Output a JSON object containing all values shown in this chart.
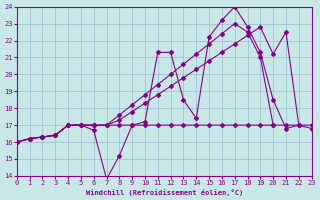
{
  "xlabel": "Windchill (Refroidissement éolien,°C)",
  "xlim": [
    0,
    23
  ],
  "ylim": [
    14,
    24
  ],
  "xticks": [
    0,
    1,
    2,
    3,
    4,
    5,
    6,
    7,
    8,
    9,
    10,
    11,
    12,
    13,
    14,
    15,
    16,
    17,
    18,
    19,
    20,
    21,
    22,
    23
  ],
  "yticks": [
    14,
    15,
    16,
    17,
    18,
    19,
    20,
    21,
    22,
    23,
    24
  ],
  "bg_color": "#c8e8e8",
  "line_color": "#880088",
  "grid_color": "#99bbcc",
  "series": [
    {
      "x": [
        0,
        1,
        2,
        3,
        4,
        5,
        6,
        7,
        8,
        9,
        10,
        11,
        12,
        13,
        14,
        15,
        16,
        17,
        18,
        19,
        20,
        21,
        22
      ],
      "y": [
        16.0,
        16.2,
        16.3,
        16.4,
        17.0,
        17.0,
        16.7,
        13.8,
        15.2,
        17.0,
        17.2,
        21.3,
        21.3,
        18.5,
        17.4,
        22.2,
        23.2,
        24.0,
        22.8,
        21.3,
        18.5,
        16.8,
        17.0
      ]
    },
    {
      "x": [
        0,
        1,
        2,
        3,
        4,
        5,
        6,
        7,
        8,
        9,
        10,
        11,
        12,
        13,
        14,
        15,
        16,
        17,
        18,
        19,
        20,
        21,
        22,
        23
      ],
      "y": [
        16.0,
        16.2,
        16.3,
        16.4,
        17.0,
        17.0,
        17.0,
        17.0,
        17.0,
        17.0,
        17.0,
        17.0,
        17.0,
        17.0,
        17.0,
        17.0,
        17.0,
        17.0,
        17.0,
        17.0,
        17.0,
        17.0,
        17.0,
        17.0
      ]
    },
    {
      "x": [
        0,
        1,
        2,
        3,
        4,
        5,
        6,
        7,
        8,
        9,
        10,
        11,
        12,
        13,
        14,
        15,
        16,
        17,
        18,
        19,
        20,
        21,
        22,
        23
      ],
      "y": [
        16.0,
        16.2,
        16.3,
        16.4,
        17.0,
        17.0,
        17.0,
        17.0,
        17.3,
        17.8,
        18.3,
        18.8,
        19.3,
        19.8,
        20.3,
        20.8,
        21.3,
        21.8,
        22.3,
        22.8,
        21.2,
        22.5,
        17.0,
        16.8
      ]
    },
    {
      "x": [
        0,
        1,
        2,
        3,
        4,
        5,
        6,
        7,
        8,
        9,
        10,
        11,
        12,
        13,
        14,
        15,
        16,
        17,
        18,
        19,
        20
      ],
      "y": [
        16.0,
        16.2,
        16.3,
        16.4,
        17.0,
        17.0,
        17.0,
        17.0,
        17.6,
        18.2,
        18.8,
        19.4,
        20.0,
        20.6,
        21.2,
        21.8,
        22.4,
        23.0,
        22.5,
        21.0,
        17.0
      ]
    }
  ]
}
